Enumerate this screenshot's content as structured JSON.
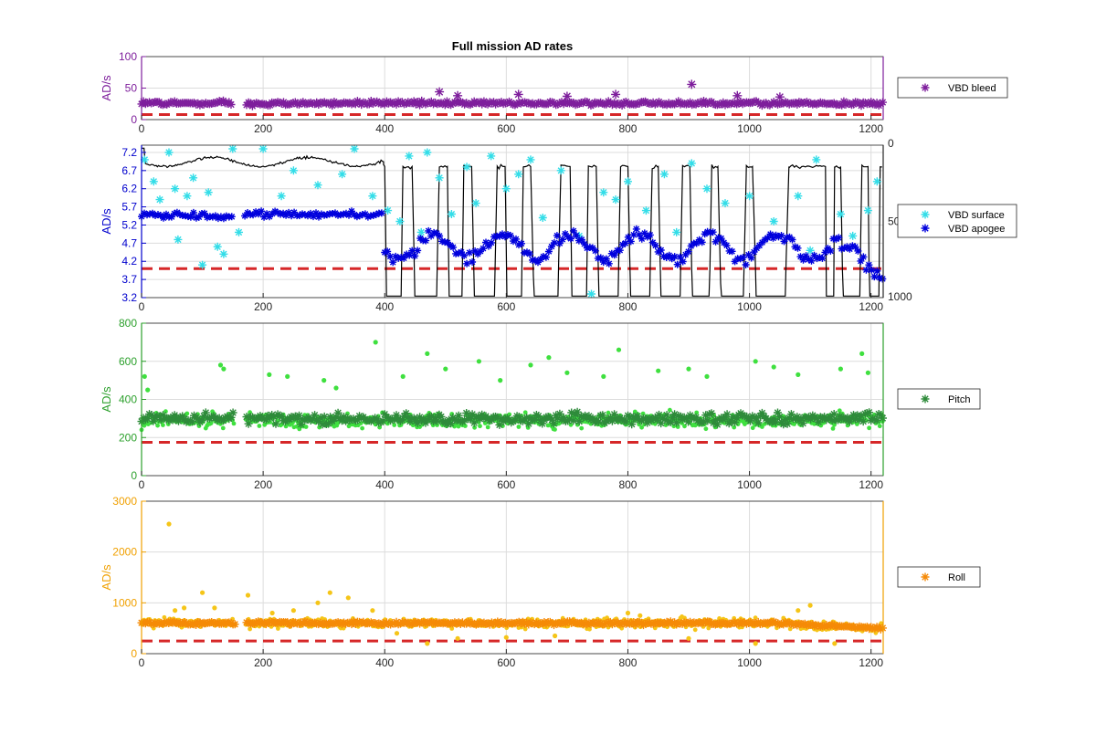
{
  "figure": {
    "title": "Full mission AD rates"
  },
  "chart_data": [
    {
      "type": "scatter",
      "ylabel": "AD/s",
      "xlim": [
        0,
        1220
      ],
      "ylim": [
        0,
        100
      ],
      "x_ticks": [
        0,
        200,
        400,
        600,
        800,
        1000,
        1200
      ],
      "y_ticks": [
        0,
        50,
        100
      ],
      "grid": true,
      "legend_position": "right",
      "threshold": 8,
      "gap": [
        150,
        170
      ],
      "colors": {
        "axis": "#7e1e9c",
        "marker": "#7e1e9c",
        "threshold": "#d62728"
      },
      "series": [
        {
          "name": "VBD bleed",
          "marker": "star",
          "color": "#7e1e9c",
          "base": 26,
          "spread": 5
        }
      ],
      "outliers": [
        {
          "x": 490,
          "y": 44
        },
        {
          "x": 520,
          "y": 38
        },
        {
          "x": 620,
          "y": 40
        },
        {
          "x": 700,
          "y": 37
        },
        {
          "x": 780,
          "y": 40
        },
        {
          "x": 905,
          "y": 56
        },
        {
          "x": 980,
          "y": 38
        },
        {
          "x": 1050,
          "y": 36
        }
      ]
    },
    {
      "type": "scatter",
      "ylabel": "AD/s",
      "xlim": [
        0,
        1220
      ],
      "ylim": [
        3.2,
        7.4
      ],
      "x_ticks": [
        0,
        200,
        400,
        600,
        800,
        1000,
        1200
      ],
      "y_ticks": [
        3.2,
        3.7,
        4.2,
        4.7,
        5.2,
        5.7,
        6.2,
        6.7,
        7.2
      ],
      "y2_ticks": [
        "0",
        "500",
        "1000"
      ],
      "y2lim": [
        0,
        1000
      ],
      "grid": true,
      "legend_position": "right",
      "threshold": 4.0,
      "colors": {
        "axis": "#0000cd",
        "threshold": "#d62728",
        "depth": "#000000"
      },
      "series": [
        {
          "name": "VBD surface",
          "marker": "star",
          "color": "#33dde8"
        },
        {
          "name": "VBD apogee",
          "marker": "star",
          "color": "#0000dd"
        }
      ],
      "surface_points": [
        {
          "x": 5,
          "y": 7.0
        },
        {
          "x": 20,
          "y": 6.4
        },
        {
          "x": 30,
          "y": 5.9
        },
        {
          "x": 45,
          "y": 7.2
        },
        {
          "x": 55,
          "y": 6.2
        },
        {
          "x": 60,
          "y": 4.8
        },
        {
          "x": 75,
          "y": 6.0
        },
        {
          "x": 85,
          "y": 6.5
        },
        {
          "x": 100,
          "y": 4.1
        },
        {
          "x": 110,
          "y": 6.1
        },
        {
          "x": 125,
          "y": 4.6
        },
        {
          "x": 135,
          "y": 4.4
        },
        {
          "x": 150,
          "y": 7.3
        },
        {
          "x": 160,
          "y": 5.0
        },
        {
          "x": 200,
          "y": 7.3
        },
        {
          "x": 230,
          "y": 6.0
        },
        {
          "x": 250,
          "y": 6.7
        },
        {
          "x": 290,
          "y": 6.3
        },
        {
          "x": 330,
          "y": 6.6
        },
        {
          "x": 350,
          "y": 7.3
        },
        {
          "x": 380,
          "y": 6.0
        },
        {
          "x": 405,
          "y": 5.6
        },
        {
          "x": 425,
          "y": 5.3
        },
        {
          "x": 440,
          "y": 7.1
        },
        {
          "x": 460,
          "y": 5.0
        },
        {
          "x": 470,
          "y": 7.2
        },
        {
          "x": 490,
          "y": 6.5
        },
        {
          "x": 510,
          "y": 5.5
        },
        {
          "x": 535,
          "y": 6.8
        },
        {
          "x": 550,
          "y": 5.8
        },
        {
          "x": 575,
          "y": 7.1
        },
        {
          "x": 600,
          "y": 6.2
        },
        {
          "x": 620,
          "y": 6.6
        },
        {
          "x": 640,
          "y": 7.0
        },
        {
          "x": 660,
          "y": 5.4
        },
        {
          "x": 690,
          "y": 6.7
        },
        {
          "x": 720,
          "y": 4.9
        },
        {
          "x": 740,
          "y": 3.3
        },
        {
          "x": 760,
          "y": 6.1
        },
        {
          "x": 780,
          "y": 5.9
        },
        {
          "x": 800,
          "y": 6.4
        },
        {
          "x": 830,
          "y": 5.6
        },
        {
          "x": 860,
          "y": 6.6
        },
        {
          "x": 880,
          "y": 5.0
        },
        {
          "x": 905,
          "y": 6.9
        },
        {
          "x": 930,
          "y": 6.2
        },
        {
          "x": 960,
          "y": 5.8
        },
        {
          "x": 1000,
          "y": 6.0
        },
        {
          "x": 1040,
          "y": 5.3
        },
        {
          "x": 1080,
          "y": 6.0
        },
        {
          "x": 1100,
          "y": 4.5
        },
        {
          "x": 1110,
          "y": 7.0
        },
        {
          "x": 1150,
          "y": 5.5
        },
        {
          "x": 1170,
          "y": 4.9
        },
        {
          "x": 1195,
          "y": 5.6
        },
        {
          "x": 1210,
          "y": 6.4
        }
      ],
      "apogee_levels": [
        {
          "x0": 0,
          "x1": 150,
          "y": 5.45
        },
        {
          "x0": 170,
          "x1": 395,
          "y": 5.5
        },
        {
          "x0": 400,
          "x1": 1220,
          "y": 4.6
        }
      ],
      "depth_profile": {
        "surface_until": 398,
        "start_depth": 150,
        "dives": [
          [
            400,
            430
          ],
          [
            445,
            490
          ],
          [
            503,
            530
          ],
          [
            543,
            585
          ],
          [
            598,
            628
          ],
          [
            640,
            690
          ],
          [
            705,
            735
          ],
          [
            748,
            788
          ],
          [
            800,
            840
          ],
          [
            850,
            890
          ],
          [
            902,
            938
          ],
          [
            948,
            995
          ],
          [
            1005,
            1065
          ],
          [
            1125,
            1140
          ],
          [
            1150,
            1185
          ],
          [
            1195,
            1215
          ]
        ]
      }
    },
    {
      "type": "scatter",
      "ylabel": "AD/s",
      "xlim": [
        0,
        1220
      ],
      "ylim": [
        0,
        800
      ],
      "x_ticks": [
        0,
        200,
        400,
        600,
        800,
        1000,
        1200
      ],
      "y_ticks": [
        0,
        200,
        400,
        600,
        800
      ],
      "grid": true,
      "legend_position": "right",
      "threshold": 175,
      "gap": [
        152,
        170
      ],
      "colors": {
        "axis": "#2ca02c",
        "threshold": "#d62728"
      },
      "series": [
        {
          "name": "Pitch",
          "marker": "star",
          "color": "#2e8b3a",
          "base": 300,
          "spread": 40
        },
        {
          "name": "",
          "marker": "dot",
          "color": "#3fe03f",
          "base": 290,
          "spread": 60
        }
      ],
      "outliers": [
        {
          "x": 5,
          "y": 520
        },
        {
          "x": 10,
          "y": 450
        },
        {
          "x": 130,
          "y": 580
        },
        {
          "x": 135,
          "y": 560
        },
        {
          "x": 210,
          "y": 530
        },
        {
          "x": 240,
          "y": 520
        },
        {
          "x": 300,
          "y": 500
        },
        {
          "x": 320,
          "y": 460
        },
        {
          "x": 385,
          "y": 700
        },
        {
          "x": 430,
          "y": 520
        },
        {
          "x": 470,
          "y": 640
        },
        {
          "x": 500,
          "y": 560
        },
        {
          "x": 555,
          "y": 600
        },
        {
          "x": 590,
          "y": 500
        },
        {
          "x": 640,
          "y": 580
        },
        {
          "x": 670,
          "y": 620
        },
        {
          "x": 700,
          "y": 540
        },
        {
          "x": 760,
          "y": 520
        },
        {
          "x": 785,
          "y": 660
        },
        {
          "x": 850,
          "y": 550
        },
        {
          "x": 900,
          "y": 560
        },
        {
          "x": 930,
          "y": 520
        },
        {
          "x": 1010,
          "y": 600
        },
        {
          "x": 1040,
          "y": 570
        },
        {
          "x": 1080,
          "y": 530
        },
        {
          "x": 1150,
          "y": 560
        },
        {
          "x": 1185,
          "y": 640
        },
        {
          "x": 1195,
          "y": 540
        }
      ]
    },
    {
      "type": "scatter",
      "ylabel": "AD/s",
      "xlim": [
        0,
        1220
      ],
      "ylim": [
        0,
        3000
      ],
      "x_ticks": [
        0,
        200,
        400,
        600,
        800,
        1000,
        1200
      ],
      "y_ticks": [
        0,
        1000,
        2000,
        3000
      ],
      "grid": true,
      "legend_position": "right",
      "threshold": 250,
      "gap": [
        155,
        170
      ],
      "colors": {
        "axis": "#f0a000",
        "threshold": "#d62728"
      },
      "series": [
        {
          "name": "Roll",
          "marker": "star",
          "color": "#f58a07",
          "base": 600,
          "spread": 40
        },
        {
          "name": "",
          "marker": "dot",
          "color": "#f5c518",
          "base": 600,
          "spread": 150
        }
      ],
      "outliers": [
        {
          "x": 45,
          "y": 2550
        },
        {
          "x": 55,
          "y": 850
        },
        {
          "x": 70,
          "y": 900
        },
        {
          "x": 100,
          "y": 1200
        },
        {
          "x": 120,
          "y": 900
        },
        {
          "x": 175,
          "y": 1150
        },
        {
          "x": 215,
          "y": 800
        },
        {
          "x": 250,
          "y": 850
        },
        {
          "x": 290,
          "y": 1000
        },
        {
          "x": 310,
          "y": 1200
        },
        {
          "x": 340,
          "y": 1100
        },
        {
          "x": 380,
          "y": 850
        },
        {
          "x": 420,
          "y": 400
        },
        {
          "x": 470,
          "y": 200
        },
        {
          "x": 520,
          "y": 300
        },
        {
          "x": 600,
          "y": 320
        },
        {
          "x": 680,
          "y": 350
        },
        {
          "x": 800,
          "y": 800
        },
        {
          "x": 820,
          "y": 750
        },
        {
          "x": 900,
          "y": 300
        },
        {
          "x": 1010,
          "y": 200
        },
        {
          "x": 1080,
          "y": 850
        },
        {
          "x": 1100,
          "y": 950
        },
        {
          "x": 1140,
          "y": 200
        }
      ]
    }
  ]
}
